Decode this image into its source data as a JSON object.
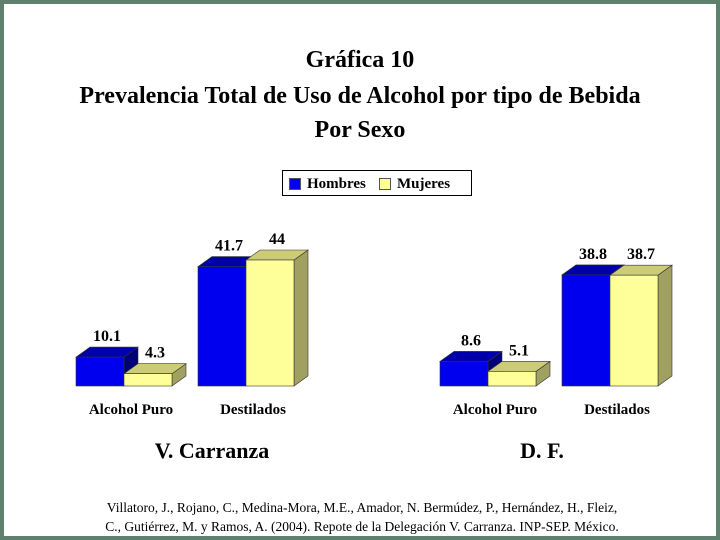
{
  "title": {
    "line1": "Gráfica 10",
    "line2": "Prevalencia Total de Uso de Alcohol por tipo de Bebida",
    "line3": "Por Sexo"
  },
  "legend": [
    {
      "label": "Hombres",
      "color": "#0000ee"
    },
    {
      "label": "Mujeres",
      "color": "#ffff99"
    }
  ],
  "chart_data": [
    {
      "type": "bar",
      "title": "V. Carranza",
      "categories": [
        "Alcohol Puro",
        "Destilados"
      ],
      "series": [
        {
          "name": "Hombres",
          "values": [
            10.1,
            41.7
          ],
          "labels": [
            "10.1",
            "41.7"
          ]
        },
        {
          "name": "Mujeres",
          "values": [
            4.3,
            44
          ],
          "labels": [
            "4.3",
            "44"
          ]
        }
      ]
    },
    {
      "type": "bar",
      "title": "D. F.",
      "categories": [
        "Alcohol Puro",
        "Destilados"
      ],
      "series": [
        {
          "name": "Hombres",
          "values": [
            8.6,
            38.8
          ],
          "labels": [
            "8.6",
            "38.8"
          ]
        },
        {
          "name": "Mujeres",
          "values": [
            5.1,
            38.7
          ],
          "labels": [
            "5.1",
            "38.7"
          ]
        }
      ]
    }
  ],
  "footnote": {
    "line1": "Villatoro, J., Rojano, C., Medina-Mora, M.E., Amador, N. Bermúdez, P., Hernández, H., Fleiz,",
    "line2": "C., Gutiérrez, M. y Ramos, A. (2004). Repote de la Delegación V. Carranza. INP-SEP. México."
  }
}
